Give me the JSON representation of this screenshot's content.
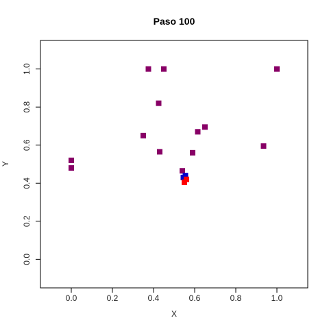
{
  "chart_data": {
    "type": "scatter",
    "title": "Paso 100",
    "xlabel": "X",
    "ylabel": "Y",
    "xlim": [
      -0.15,
      1.15
    ],
    "ylim": [
      -0.15,
      1.15
    ],
    "xticks": [
      "0.0",
      "0.2",
      "0.4",
      "0.6",
      "0.8",
      "1.0"
    ],
    "yticks": [
      "0.0",
      "0.2",
      "0.4",
      "0.6",
      "0.8",
      "1.0"
    ],
    "grid": false,
    "marker": "square",
    "series": [
      {
        "color": "#880066",
        "points": [
          {
            "x": 0.0,
            "y": 0.52
          },
          {
            "x": 0.0,
            "y": 0.48
          },
          {
            "x": 0.375,
            "y": 1.0
          },
          {
            "x": 0.45,
            "y": 1.0
          },
          {
            "x": 1.0,
            "y": 1.0
          },
          {
            "x": 0.425,
            "y": 0.82
          },
          {
            "x": 0.35,
            "y": 0.65
          },
          {
            "x": 0.43,
            "y": 0.565
          },
          {
            "x": 0.65,
            "y": 0.695
          },
          {
            "x": 0.615,
            "y": 0.67
          },
          {
            "x": 0.59,
            "y": 0.56
          },
          {
            "x": 0.935,
            "y": 0.595
          },
          {
            "x": 0.54,
            "y": 0.465
          }
        ]
      },
      {
        "color": "#0000cc",
        "points": [
          {
            "x": 0.555,
            "y": 0.44
          },
          {
            "x": 0.545,
            "y": 0.43
          }
        ]
      },
      {
        "color": "#ff0000",
        "points": [
          {
            "x": 0.56,
            "y": 0.42
          },
          {
            "x": 0.55,
            "y": 0.405
          }
        ]
      }
    ]
  }
}
